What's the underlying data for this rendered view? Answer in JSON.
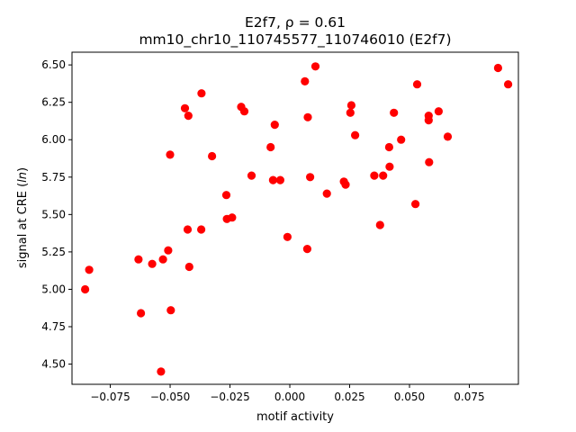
{
  "chart_data": {
    "type": "scatter",
    "title_line1": "E2f7, ρ = 0.61",
    "title_line2": "mm10_chr10_110745577_110746010 (E2f7)",
    "xlabel": "motif activity",
    "ylabel": "signal at CRE (ln)",
    "xlim": [
      -0.091,
      0.0955
    ],
    "ylim": [
      4.365,
      6.585
    ],
    "xticks": [
      -0.075,
      -0.05,
      -0.025,
      0.0,
      0.025,
      0.05,
      0.075
    ],
    "xtick_labels": [
      "−0.075",
      "−0.050",
      "−0.025",
      "0.000",
      "0.025",
      "0.050",
      "0.075"
    ],
    "yticks": [
      4.5,
      4.75,
      5.0,
      5.25,
      5.5,
      5.75,
      6.0,
      6.25,
      6.5
    ],
    "ytick_labels": [
      "4.50",
      "4.75",
      "5.00",
      "5.25",
      "5.50",
      "5.75",
      "6.00",
      "6.25",
      "6.50"
    ],
    "grid": false,
    "marker_color": "#ff0000",
    "points": [
      [
        -0.0855,
        5.0
      ],
      [
        -0.0838,
        5.13
      ],
      [
        -0.0622,
        4.84
      ],
      [
        -0.0632,
        5.2
      ],
      [
        -0.0575,
        5.17
      ],
      [
        -0.0538,
        4.45
      ],
      [
        -0.053,
        5.2
      ],
      [
        -0.0508,
        5.26
      ],
      [
        -0.0497,
        4.86
      ],
      [
        -0.05,
        5.9
      ],
      [
        -0.0438,
        6.21
      ],
      [
        -0.0424,
        6.16
      ],
      [
        -0.0427,
        5.4
      ],
      [
        -0.042,
        5.15
      ],
      [
        -0.0369,
        6.31
      ],
      [
        -0.037,
        5.4
      ],
      [
        -0.0325,
        5.89
      ],
      [
        -0.0265,
        5.63
      ],
      [
        -0.0263,
        5.47
      ],
      [
        -0.0241,
        5.48
      ],
      [
        -0.0203,
        6.22
      ],
      [
        -0.019,
        6.19
      ],
      [
        -0.016,
        5.76
      ],
      [
        -0.008,
        5.95
      ],
      [
        -0.0063,
        6.1
      ],
      [
        -0.007,
        5.73
      ],
      [
        -0.004,
        5.73
      ],
      [
        -0.001,
        5.35
      ],
      [
        0.0063,
        6.39
      ],
      [
        0.0075,
        6.15
      ],
      [
        0.0073,
        5.27
      ],
      [
        0.0085,
        5.75
      ],
      [
        0.0107,
        6.49
      ],
      [
        0.0155,
        5.64
      ],
      [
        0.0226,
        5.72
      ],
      [
        0.0233,
        5.7
      ],
      [
        0.0253,
        6.18
      ],
      [
        0.0257,
        6.23
      ],
      [
        0.0273,
        6.03
      ],
      [
        0.0353,
        5.76
      ],
      [
        0.0377,
        5.43
      ],
      [
        0.039,
        5.76
      ],
      [
        0.0415,
        5.95
      ],
      [
        0.0417,
        5.82
      ],
      [
        0.0435,
        6.18
      ],
      [
        0.0465,
        6.0
      ],
      [
        0.0525,
        5.57
      ],
      [
        0.0532,
        6.37
      ],
      [
        0.058,
        6.16
      ],
      [
        0.058,
        6.13
      ],
      [
        0.0582,
        5.85
      ],
      [
        0.0622,
        6.19
      ],
      [
        0.066,
        6.02
      ],
      [
        0.087,
        6.48
      ],
      [
        0.0912,
        6.37
      ]
    ]
  }
}
